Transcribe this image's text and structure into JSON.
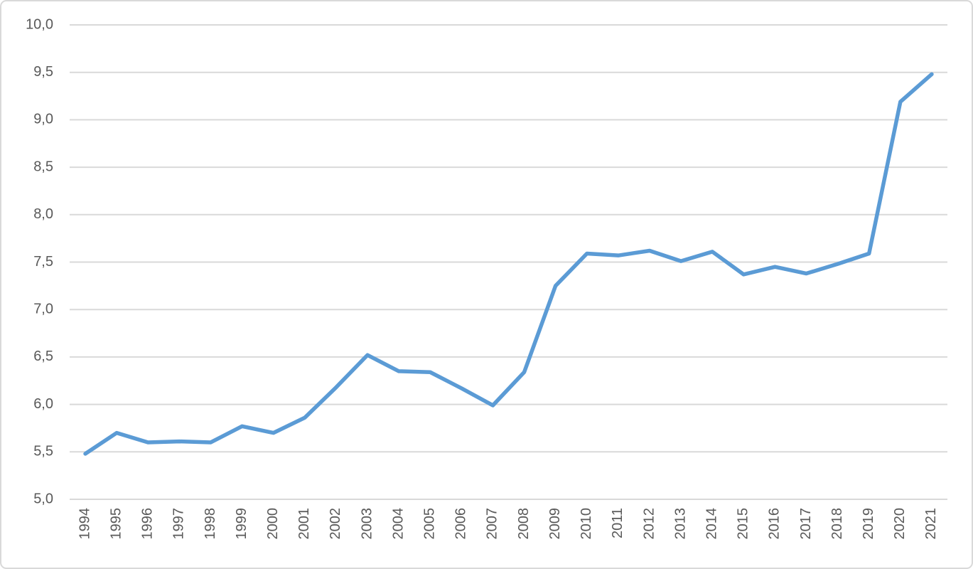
{
  "chart_data": {
    "type": "line",
    "categories": [
      "1994",
      "1995",
      "1996",
      "1997",
      "1998",
      "1999",
      "2000",
      "2001",
      "2002",
      "2003",
      "2004",
      "2005",
      "2006",
      "2007",
      "2008",
      "2009",
      "2010",
      "2011",
      "2012",
      "2013",
      "2014",
      "2015",
      "2016",
      "2017",
      "2018",
      "2019",
      "2020",
      "2021"
    ],
    "values": [
      5.48,
      5.7,
      5.6,
      5.61,
      5.6,
      5.77,
      5.7,
      5.86,
      6.18,
      6.52,
      6.35,
      6.34,
      6.17,
      5.99,
      6.34,
      7.25,
      7.59,
      7.57,
      7.62,
      7.51,
      7.61,
      7.37,
      7.45,
      7.38,
      7.48,
      7.59,
      9.19,
      9.48
    ],
    "color": "#5b9bd5",
    "ylim": [
      5,
      10
    ],
    "yticks": [
      {
        "value": 5,
        "label": "5,0"
      },
      {
        "value": 5.5,
        "label": "5,5"
      },
      {
        "value": 6,
        "label": "6,0"
      },
      {
        "value": 6.5,
        "label": "6,5"
      },
      {
        "value": 7,
        "label": "7,0"
      },
      {
        "value": 7.5,
        "label": "7,5"
      },
      {
        "value": 8,
        "label": "8,0"
      },
      {
        "value": 8.5,
        "label": "8,5"
      },
      {
        "value": 9,
        "label": "9,0"
      },
      {
        "value": 9.5,
        "label": "9,5"
      },
      {
        "value": 10,
        "label": "10,0"
      }
    ],
    "grid": true
  }
}
